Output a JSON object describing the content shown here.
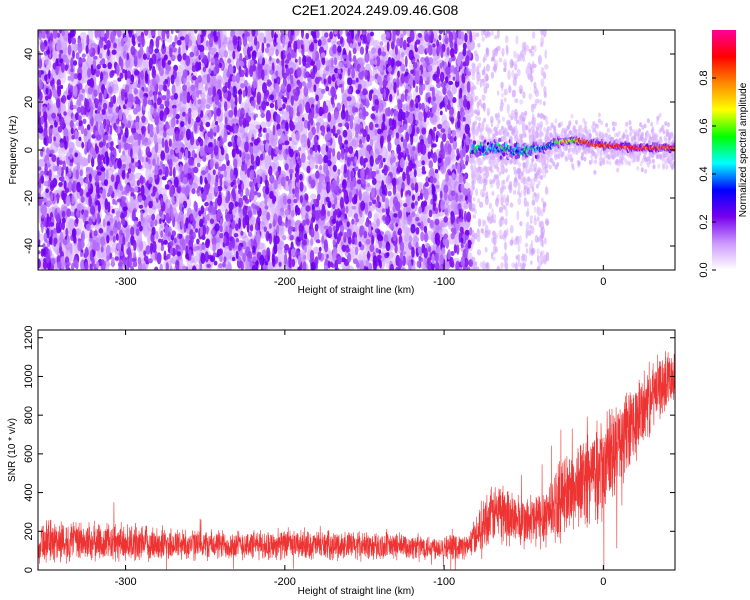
{
  "title": "C2E1.2024.249.09.46.G08",
  "chart_data": [
    {
      "type": "heatmap",
      "xlabel": "Height of straight line (km)",
      "ylabel": "Frequency (Hz)",
      "xlim": [
        -355,
        45
      ],
      "ylim": [
        -50,
        50
      ],
      "xticks": [
        -300,
        -200,
        -100,
        0
      ],
      "yticks": [
        -40,
        -20,
        0,
        20,
        40
      ],
      "colorbar": {
        "label": "Normalized spectral amplitude",
        "range": [
          0,
          1
        ],
        "ticks": [
          0.0,
          0.2,
          0.4,
          0.6,
          0.8
        ],
        "colors": [
          "#ffffff",
          "#cc99ff",
          "#7700ee",
          "#0000ff",
          "#00ffff",
          "#00ff00",
          "#ffff00",
          "#ff8800",
          "#ff0000",
          "#ff0099"
        ]
      },
      "features": {
        "noise_region_x": [
          -355,
          -83
        ],
        "sparse_region_x": [
          -83,
          -35
        ],
        "signal_trace": [
          {
            "x": -83,
            "y": 0
          },
          {
            "x": -70,
            "y": 1
          },
          {
            "x": -55,
            "y": 0
          },
          {
            "x": -40,
            "y": 0
          },
          {
            "x": -30,
            "y": 3
          },
          {
            "x": -20,
            "y": 4
          },
          {
            "x": -10,
            "y": 3
          },
          {
            "x": 0,
            "y": 2
          },
          {
            "x": 20,
            "y": 1
          },
          {
            "x": 45,
            "y": 1
          }
        ]
      }
    },
    {
      "type": "line",
      "xlabel": "Height of straight line (km)",
      "ylabel": "SNR (10 * v/v)",
      "xlim": [
        -355,
        45
      ],
      "ylim": [
        0,
        1240
      ],
      "xticks": [
        -300,
        -200,
        -100,
        0
      ],
      "yticks": [
        0,
        200,
        400,
        600,
        800,
        1000,
        1200
      ],
      "color": "#ee3333",
      "envelope": {
        "x": [
          -355,
          -330,
          -300,
          -250,
          -200,
          -150,
          -100,
          -85,
          -75,
          -65,
          -50,
          -40,
          -25,
          -10,
          0,
          10,
          20,
          30,
          45
        ],
        "mean": [
          150,
          145,
          140,
          130,
          130,
          125,
          120,
          120,
          250,
          310,
          240,
          260,
          380,
          480,
          520,
          650,
          760,
          890,
          1030
        ],
        "spread": [
          110,
          100,
          90,
          75,
          70,
          70,
          60,
          60,
          130,
          150,
          130,
          150,
          200,
          230,
          250,
          230,
          200,
          170,
          130
        ]
      }
    }
  ]
}
